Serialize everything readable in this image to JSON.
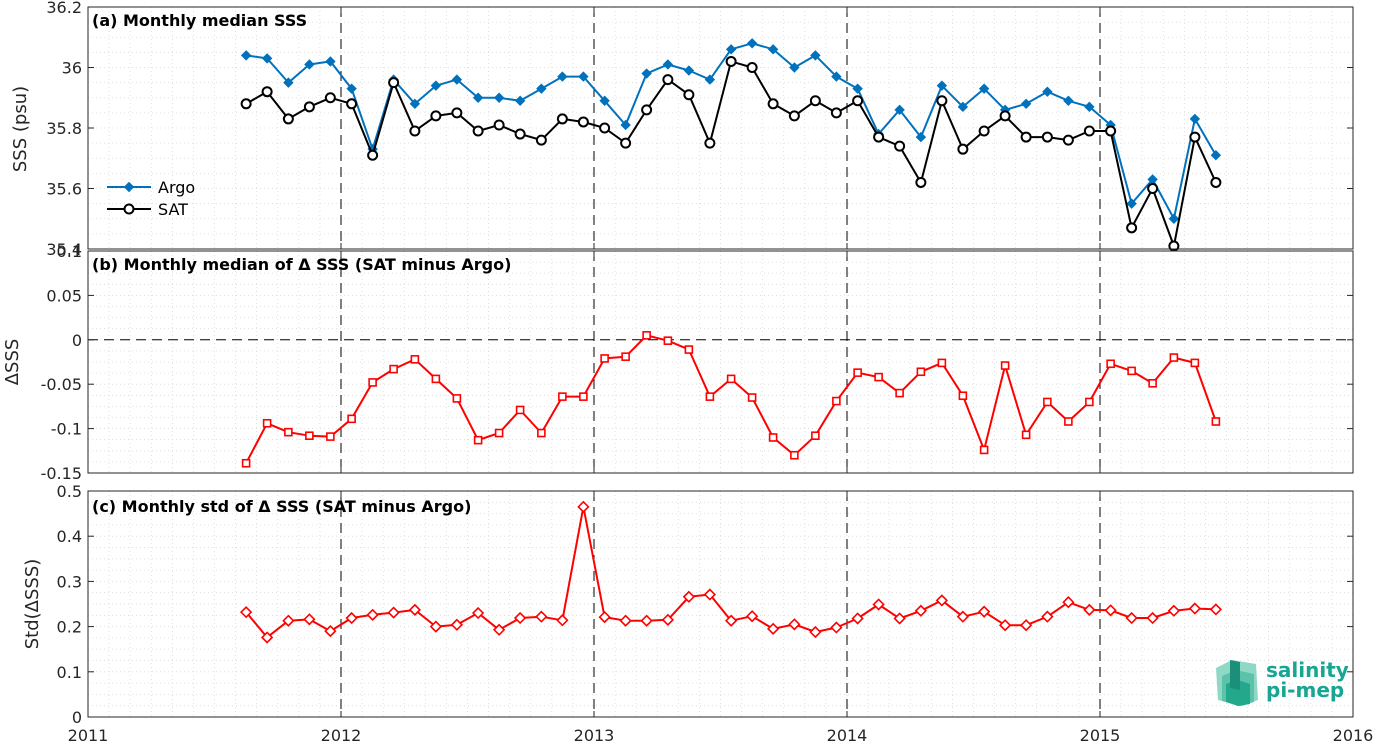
{
  "chart_data": [
    {
      "type": "line",
      "title": "(a) Monthly median SSS",
      "ylabel": "SSS (psu)",
      "ylim": [
        35.4,
        36.2
      ],
      "yticks": [
        35.4,
        35.6,
        35.8,
        36,
        36.2
      ],
      "ytick_labels": [
        "35.4",
        "35.6",
        "35.8",
        "36",
        "36.2"
      ],
      "xlim": [
        2011,
        2016
      ],
      "legend_placement": "bottom-left",
      "grid": "minor-dotted",
      "x": [
        2011.625,
        2011.708,
        2011.792,
        2011.875,
        2011.958,
        2012.042,
        2012.125,
        2012.208,
        2012.292,
        2012.375,
        2012.458,
        2012.542,
        2012.625,
        2012.708,
        2012.792,
        2012.875,
        2012.958,
        2013.042,
        2013.125,
        2013.208,
        2013.292,
        2013.375,
        2013.458,
        2013.542,
        2013.625,
        2013.708,
        2013.792,
        2013.875,
        2013.958,
        2014.042,
        2014.125,
        2014.208,
        2014.292,
        2014.375,
        2014.458,
        2014.542,
        2014.625,
        2014.708,
        2014.792,
        2014.875,
        2014.958,
        2015.042,
        2015.125,
        2015.208,
        2015.292,
        2015.375,
        2015.458
      ],
      "series": [
        {
          "name": "Argo",
          "color": "#0072bd",
          "marker": "diamond-filled",
          "values": [
            36.04,
            36.03,
            35.95,
            36.01,
            36.02,
            35.93,
            35.73,
            35.96,
            35.88,
            35.94,
            35.96,
            35.9,
            35.9,
            35.89,
            35.93,
            35.97,
            35.97,
            35.89,
            35.81,
            35.98,
            36.01,
            35.99,
            35.96,
            36.06,
            36.08,
            36.06,
            36.0,
            36.04,
            35.97,
            35.93,
            35.78,
            35.86,
            35.77,
            35.94,
            35.87,
            35.93,
            35.86,
            35.88,
            35.92,
            35.89,
            35.87,
            35.81,
            35.55,
            35.63,
            35.5,
            35.83,
            35.71
          ]
        },
        {
          "name": "SAT",
          "color": "#000000",
          "marker": "circle-open",
          "values": [
            35.88,
            35.92,
            35.83,
            35.87,
            35.9,
            35.88,
            35.71,
            35.95,
            35.79,
            35.84,
            35.85,
            35.79,
            35.81,
            35.78,
            35.76,
            35.83,
            35.82,
            35.8,
            35.75,
            35.86,
            35.96,
            35.91,
            35.75,
            36.02,
            36.0,
            35.88,
            35.84,
            35.89,
            35.85,
            35.89,
            35.77,
            35.74,
            35.62,
            35.89,
            35.73,
            35.79,
            35.84,
            35.77,
            35.77,
            35.76,
            35.79,
            35.79,
            35.47,
            35.6,
            35.41,
            35.77,
            35.62
          ]
        }
      ]
    },
    {
      "type": "line",
      "title": "(b) Monthly median of Δ SSS (SAT minus Argo)",
      "ylabel": "ΔSSS",
      "ylim": [
        -0.15,
        0.1
      ],
      "yticks": [
        -0.15,
        -0.1,
        -0.05,
        0,
        0.05,
        0.1
      ],
      "ytick_labels": [
        "-0.15",
        "-0.1",
        "-0.05",
        "0",
        "0.05",
        "0.1"
      ],
      "xlim": [
        2011,
        2016
      ],
      "reference_line": 0,
      "grid": "minor-dotted",
      "x": [
        2011.625,
        2011.708,
        2011.792,
        2011.875,
        2011.958,
        2012.042,
        2012.125,
        2012.208,
        2012.292,
        2012.375,
        2012.458,
        2012.542,
        2012.625,
        2012.708,
        2012.792,
        2012.875,
        2012.958,
        2013.042,
        2013.125,
        2013.208,
        2013.292,
        2013.375,
        2013.458,
        2013.542,
        2013.625,
        2013.708,
        2013.792,
        2013.875,
        2013.958,
        2014.042,
        2014.125,
        2014.208,
        2014.292,
        2014.375,
        2014.458,
        2014.542,
        2014.625,
        2014.708,
        2014.792,
        2014.875,
        2014.958,
        2015.042,
        2015.125,
        2015.208,
        2015.292,
        2015.375,
        2015.458
      ],
      "series": [
        {
          "color": "#ff0000",
          "marker": "square-open",
          "values": [
            -0.139,
            -0.094,
            -0.104,
            -0.108,
            -0.109,
            -0.089,
            -0.048,
            -0.033,
            -0.022,
            -0.044,
            -0.066,
            -0.113,
            -0.105,
            -0.079,
            -0.105,
            -0.064,
            -0.064,
            -0.021,
            -0.019,
            0.005,
            -0.001,
            -0.011,
            -0.064,
            -0.044,
            -0.065,
            -0.11,
            -0.13,
            -0.108,
            -0.069,
            -0.037,
            -0.042,
            -0.06,
            -0.036,
            -0.026,
            -0.063,
            -0.124,
            -0.029,
            -0.107,
            -0.07,
            -0.092,
            -0.07,
            -0.027,
            -0.035,
            -0.049,
            -0.02,
            -0.026,
            -0.092
          ]
        }
      ]
    },
    {
      "type": "line",
      "title": "(c) Monthly std of Δ SSS (SAT minus Argo)",
      "ylabel": "Std(ΔSSS)",
      "ylim": [
        0,
        0.5
      ],
      "yticks": [
        0,
        0.1,
        0.2,
        0.3,
        0.4,
        0.5
      ],
      "ytick_labels": [
        "0",
        "0.1",
        "0.2",
        "0.3",
        "0.4",
        "0.5"
      ],
      "xlim": [
        2011,
        2016
      ],
      "xticks": [
        2011,
        2012,
        2013,
        2014,
        2015,
        2016
      ],
      "xtick_labels": [
        "2011",
        "2012",
        "2013",
        "2014",
        "2015",
        "2016"
      ],
      "grid": "minor-dotted",
      "x": [
        2011.625,
        2011.708,
        2011.792,
        2011.875,
        2011.958,
        2012.042,
        2012.125,
        2012.208,
        2012.292,
        2012.375,
        2012.458,
        2012.542,
        2012.625,
        2012.708,
        2012.792,
        2012.875,
        2012.958,
        2013.042,
        2013.125,
        2013.208,
        2013.292,
        2013.375,
        2013.458,
        2013.542,
        2013.625,
        2013.708,
        2013.792,
        2013.875,
        2013.958,
        2014.042,
        2014.125,
        2014.208,
        2014.292,
        2014.375,
        2014.458,
        2014.542,
        2014.625,
        2014.708,
        2014.792,
        2014.875,
        2014.958,
        2015.042,
        2015.125,
        2015.208,
        2015.292,
        2015.375,
        2015.458
      ],
      "series": [
        {
          "color": "#ff0000",
          "marker": "diamond-open",
          "values": [
            0.232,
            0.176,
            0.213,
            0.216,
            0.19,
            0.219,
            0.226,
            0.231,
            0.237,
            0.2,
            0.204,
            0.23,
            0.193,
            0.219,
            0.222,
            0.214,
            0.465,
            0.221,
            0.213,
            0.213,
            0.215,
            0.266,
            0.271,
            0.213,
            0.223,
            0.195,
            0.205,
            0.188,
            0.198,
            0.218,
            0.249,
            0.218,
            0.235,
            0.258,
            0.222,
            0.233,
            0.203,
            0.203,
            0.222,
            0.254,
            0.237,
            0.236,
            0.219,
            0.219,
            0.235,
            0.24,
            0.238
          ]
        }
      ]
    }
  ],
  "logo": {
    "line1": "salinity",
    "line2": "pi-mep",
    "color": "#18a591"
  }
}
